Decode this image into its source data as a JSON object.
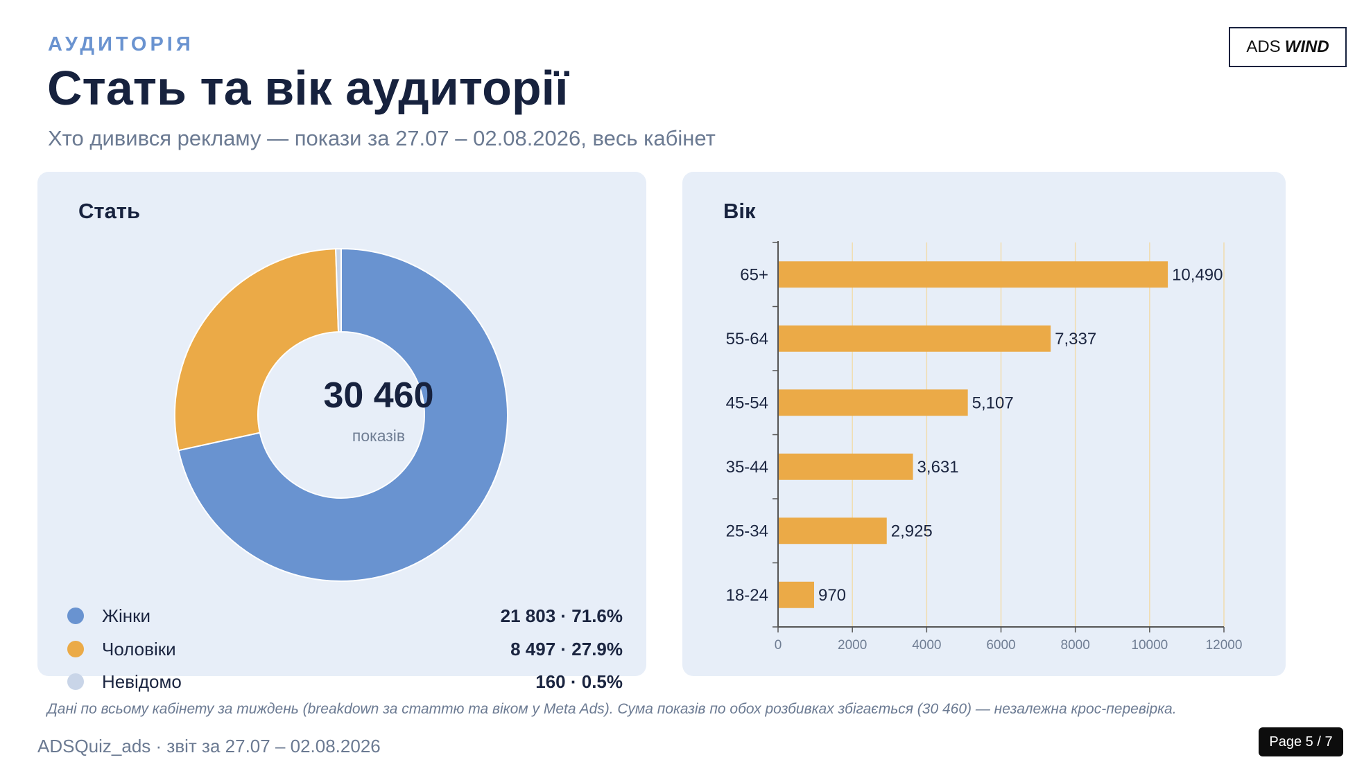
{
  "header": {
    "eyebrow": "АУДИТОРІЯ",
    "title": "Стать та вік аудиторії",
    "subtitle": "Хто дивився рекламу — покази за 27.07 – 02.08.2026, весь кабінет"
  },
  "brand": {
    "part1": "ADS",
    "part2": "WIND"
  },
  "gender_panel": {
    "title": "Стать",
    "total": "30 460",
    "total_unit": "показів",
    "legend": [
      {
        "label": "Жінки",
        "value": "21 803 · 71.6%",
        "color": "#6993d0"
      },
      {
        "label": "Чоловіки",
        "value": "8 497 · 27.9%",
        "color": "#ebaa47"
      },
      {
        "label": "Невідомо",
        "value": "160 · 0.5%",
        "color": "#c9d5e8"
      }
    ]
  },
  "age_panel": {
    "title": "Вік"
  },
  "chart_data": [
    {
      "type": "pie",
      "title": "Стать",
      "categories": [
        "Жінки",
        "Чоловіки",
        "Невідомо"
      ],
      "values": [
        21803,
        8497,
        160
      ],
      "colors": [
        "#6993d0",
        "#ebaa47",
        "#c9d5e8"
      ],
      "center_label": "30 460"
    },
    {
      "type": "bar",
      "orientation": "horizontal",
      "title": "Вік",
      "categories": [
        "65+",
        "55-64",
        "45-54",
        "35-44",
        "25-34",
        "18-24"
      ],
      "values": [
        10490,
        7337,
        5107,
        3631,
        2925,
        970
      ],
      "value_labels": [
        "10,490",
        "7,337",
        "5,107",
        "3,631",
        "2,925",
        "970"
      ],
      "xlim": [
        0,
        12000
      ],
      "xticks": [
        0,
        2000,
        4000,
        6000,
        8000,
        10000,
        12000
      ],
      "color": "#ebaa47",
      "grid": "vertical"
    }
  ],
  "footnote": "Дані по всьому кабінету за тиждень (breakdown за статтю та віком у Meta Ads). Сума показів по обох розбивках збігається (30 460) — незалежна крос-перевірка.",
  "footer": "ADSQuiz_ads · звіт за 27.07 – 02.08.2026",
  "pager": "Page 5 / 7"
}
